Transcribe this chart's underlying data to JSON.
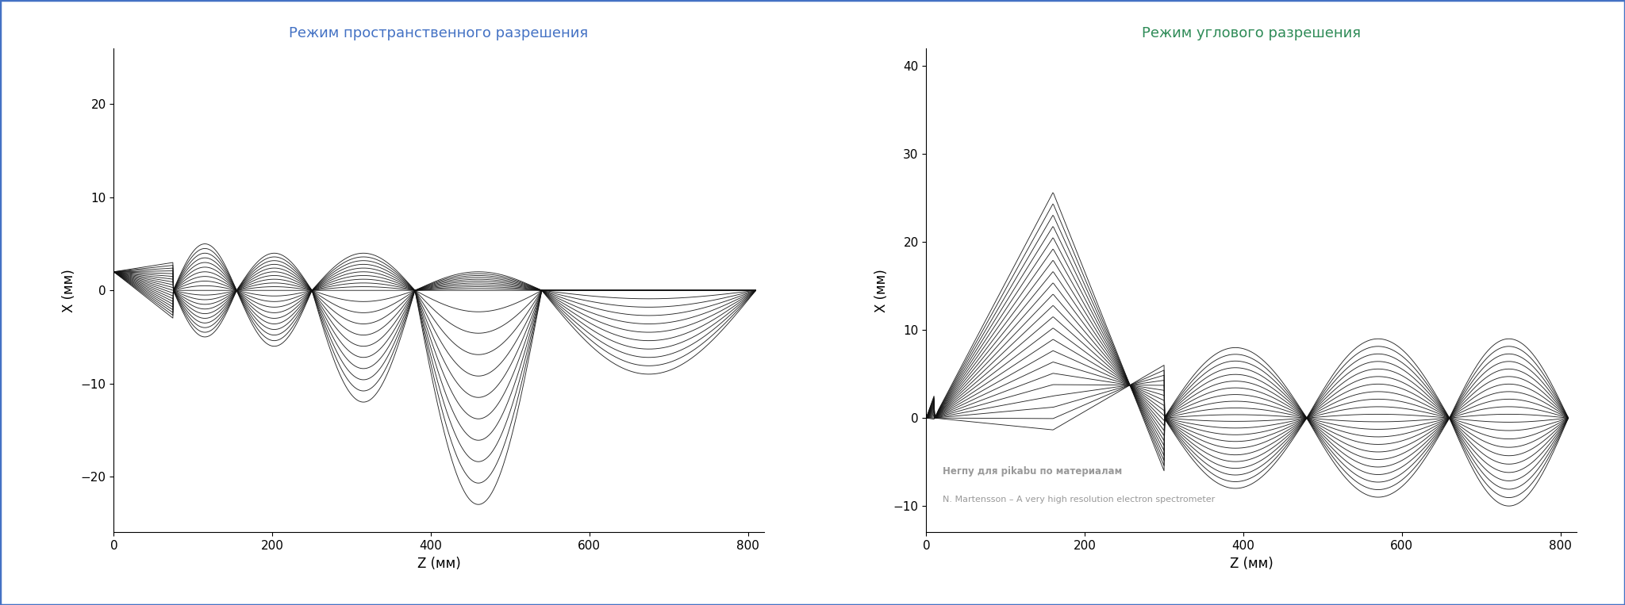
{
  "title1": "Режим пространственного разрешения",
  "title2": "Режим углового разрешения",
  "title1_color": "#4472C4",
  "title2_color": "#2E8B57",
  "xlabel": "Z (мм)",
  "ylabel": "X (мм)",
  "xlim": [
    0,
    820
  ],
  "ylim1": [
    -26,
    26
  ],
  "ylim2": [
    -13,
    42
  ],
  "xticks": [
    0,
    200,
    400,
    600,
    800
  ],
  "yticks1": [
    -20,
    -10,
    0,
    10,
    20
  ],
  "yticks2": [
    -10,
    0,
    10,
    20,
    30,
    40
  ],
  "line_color": "#111111",
  "line_width": 0.65,
  "annotation_color": "#999999",
  "annotation_text1": "Негпу для pikabu по материалам",
  "annotation_text2": "N. Martensson – A very high resolution electron spectrometer",
  "background_color": "#FFFFFF",
  "border_color": "#4472C4",
  "border_linewidth": 2.5,
  "n_rays1": 21,
  "n_rays2": 22
}
